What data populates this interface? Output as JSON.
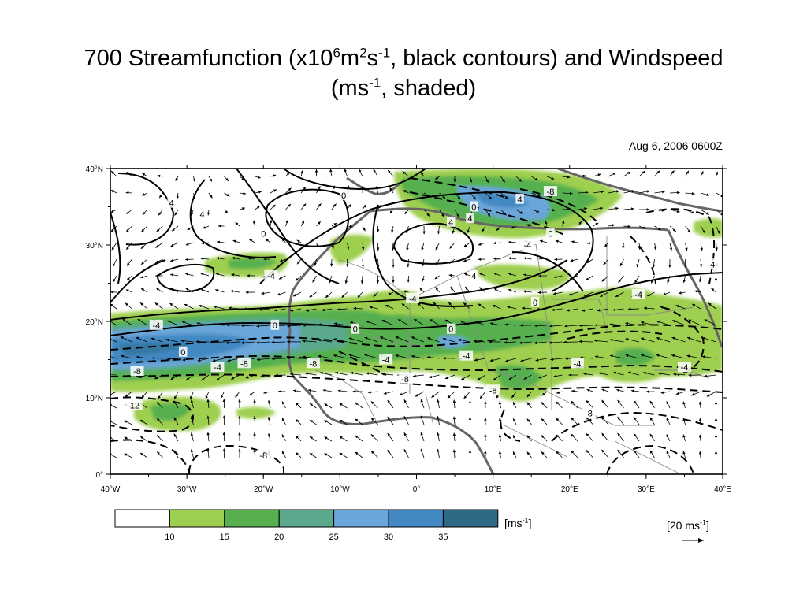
{
  "title": {
    "line1_a": "700 Streamfunction (x10",
    "sup1": "6",
    "line1_b": "m",
    "sup2": "2",
    "line1_c": "s",
    "sup3": "-1",
    "line1_d": ", black contours) and Windspeed",
    "line2_a": "(ms",
    "sup4": "-1",
    "line2_b": ", shaded)"
  },
  "date_label": "Aug 6, 2006 0600Z",
  "map": {
    "lon_labels": [
      "40°W",
      "30°W",
      "20°W",
      "10°W",
      "0°",
      "10°E",
      "20°E",
      "30°E",
      "40°E"
    ],
    "lat_labels": [
      "40°N",
      "30°N",
      "20°N",
      "10°N",
      "0°"
    ],
    "contour_labels": [
      {
        "text": "0",
        "lon": -30.5,
        "lat": 16.0
      },
      {
        "text": "-4",
        "lon": -26.0,
        "lat": 14.0
      },
      {
        "text": "-8",
        "lon": -36.5,
        "lat": 13.5
      },
      {
        "text": "-4",
        "lon": -34.0,
        "lat": 19.5
      },
      {
        "text": "-8",
        "lon": -22.5,
        "lat": 14.5
      },
      {
        "text": "-12",
        "lon": -37.0,
        "lat": 9.0
      },
      {
        "text": "-8",
        "lon": -20.0,
        "lat": 2.5
      },
      {
        "text": "-4",
        "lon": -19.0,
        "lat": 26.0
      },
      {
        "text": "4",
        "lon": -28.0,
        "lat": 34.0
      },
      {
        "text": "4",
        "lon": -32.0,
        "lat": 35.5
      },
      {
        "text": "0",
        "lon": -20.0,
        "lat": 31.5
      },
      {
        "text": "0",
        "lon": -9.5,
        "lat": 36.5
      },
      {
        "text": "4",
        "lon": 7.0,
        "lat": 33.5
      },
      {
        "text": "0",
        "lon": 7.5,
        "lat": 35.0
      },
      {
        "text": "4",
        "lon": 13.5,
        "lat": 36.0
      },
      {
        "text": "-8",
        "lon": 17.5,
        "lat": 37.0
      },
      {
        "text": "0",
        "lon": 17.5,
        "lat": 31.5
      },
      {
        "text": "-4",
        "lon": 14.5,
        "lat": 30.0
      },
      {
        "text": "4",
        "lon": 4.5,
        "lat": 33.0
      },
      {
        "text": "4",
        "lon": 7.5,
        "lat": 26.0
      },
      {
        "text": "-4",
        "lon": -0.5,
        "lat": 23.0
      },
      {
        "text": "0",
        "lon": -18.5,
        "lat": 19.5
      },
      {
        "text": "0",
        "lon": -8.0,
        "lat": 19.0
      },
      {
        "text": "0",
        "lon": 4.5,
        "lat": 19.0
      },
      {
        "text": "0",
        "lon": 15.5,
        "lat": 22.5
      },
      {
        "text": "-4",
        "lon": -4.0,
        "lat": 15.0
      },
      {
        "text": "-4",
        "lon": 6.5,
        "lat": 15.5
      },
      {
        "text": "-8",
        "lon": -13.5,
        "lat": 14.5
      },
      {
        "text": "-8",
        "lon": -1.5,
        "lat": 12.5
      },
      {
        "text": "-8",
        "lon": 10.0,
        "lat": 11.0
      },
      {
        "text": "-4",
        "lon": 21.0,
        "lat": 14.5
      },
      {
        "text": "-4",
        "lon": 29.0,
        "lat": 23.5
      },
      {
        "text": "-4",
        "lon": 35.0,
        "lat": 14.0
      },
      {
        "text": "-4",
        "lon": 38.5,
        "lat": 27.5
      },
      {
        "text": "-8",
        "lon": 22.5,
        "lat": 8.0
      }
    ]
  },
  "colorbar": {
    "colors": [
      "#ffffff",
      "#9fcf4f",
      "#56b04f",
      "#5aa98d",
      "#6aa6d9",
      "#4289c3",
      "#2e6a86"
    ],
    "labels": [
      "10",
      "15",
      "20",
      "25",
      "30",
      "35"
    ],
    "units_a": "[ms",
    "units_sup": "-1",
    "units_b": "]"
  },
  "reference_vector": {
    "label_a": "[20 ms",
    "label_sup": "-1",
    "label_b": "]"
  }
}
